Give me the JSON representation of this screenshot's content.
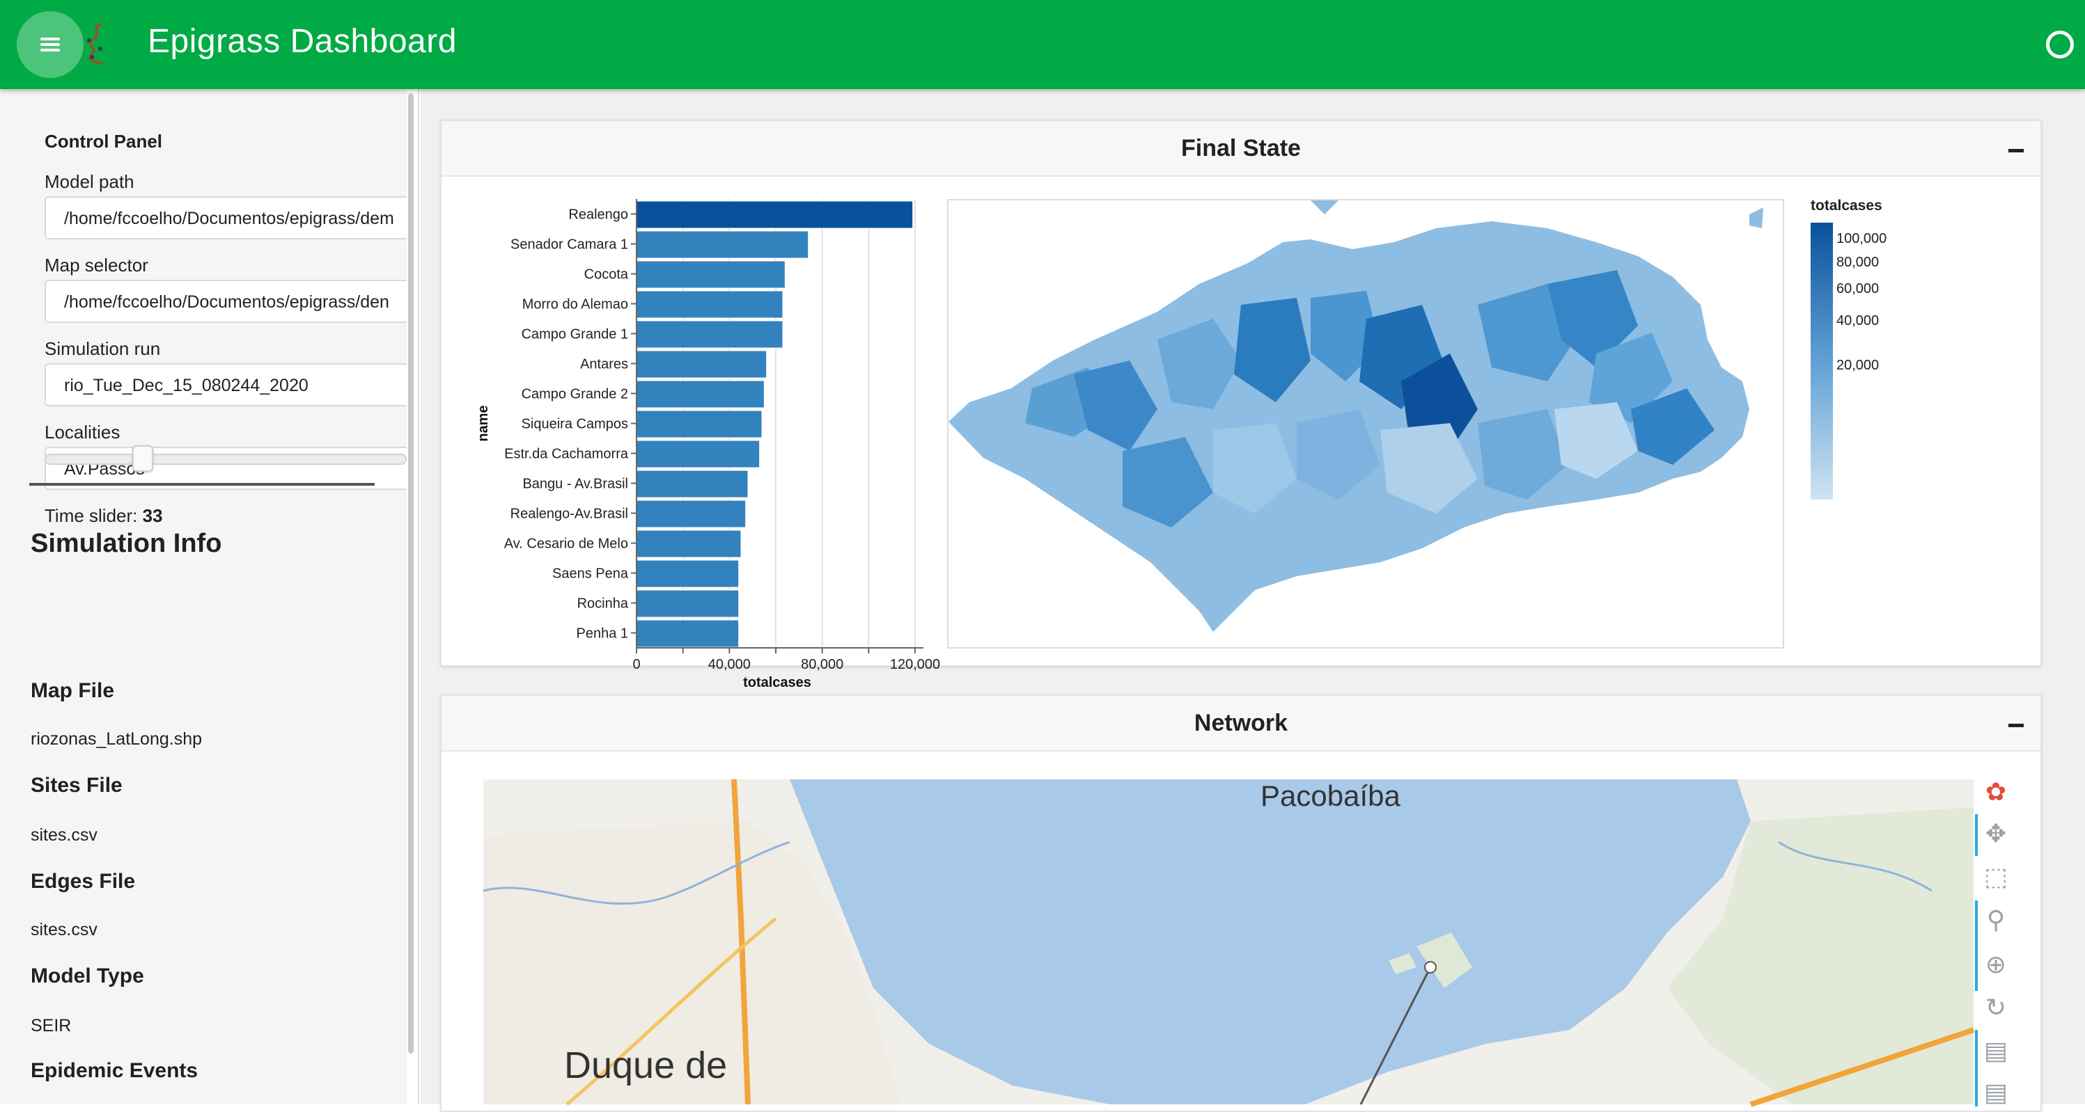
{
  "header": {
    "title": "Epigrass Dashboard",
    "menu_icon": "hamburger-menu-icon",
    "status_icon": "busy-indicator-ring-icon",
    "brand_color": "#00aa44"
  },
  "control_panel": {
    "title": "Control Panel",
    "model_path": {
      "label": "Model path",
      "value": "/home/fccoelho/Documentos/epigrass/dem"
    },
    "map_selector": {
      "label": "Map selector",
      "value": "/home/fccoelho/Documentos/epigrass/den"
    },
    "simulation_run": {
      "label": "Simulation run",
      "value": "rio_Tue_Dec_15_080244_2020"
    },
    "localities": {
      "label": "Localities",
      "value": "Av.Passos"
    },
    "time_slider": {
      "label": "Time slider: ",
      "value": "33",
      "fraction": 0.33
    }
  },
  "simulation_info": {
    "title": "Simulation Info",
    "map_file": {
      "label": "Map File",
      "value": "riozonas_LatLong.shp"
    },
    "sites_file": {
      "label": "Sites File",
      "value": "sites.csv"
    },
    "edges_file": {
      "label": "Edges File",
      "value": "sites.csv"
    },
    "model_type": {
      "label": "Model Type",
      "value": "SEIR"
    },
    "epidemic_events": {
      "label": "Epidemic Events"
    }
  },
  "final_state": {
    "title": "Final State",
    "legend": {
      "title": "totalcases",
      "labels": [
        "100,000",
        "80,000",
        "60,000",
        "40,000",
        "20,000"
      ]
    }
  },
  "network": {
    "title": "Network",
    "map_labels": {
      "north": "Pacobaíba",
      "west": "Duque de"
    },
    "tools": [
      "bokeh-logo-icon",
      "pan-icon",
      "box-zoom-icon",
      "wheel-zoom-icon",
      "zoom-in-icon",
      "reset-icon",
      "hover-icon",
      "hover-icon-2"
    ]
  },
  "chart_data": {
    "type": "bar",
    "orientation": "horizontal",
    "categories": [
      "Realengo",
      "Senador Camara 1",
      "Cocota",
      "Morro do Alemao",
      "Campo Grande 1",
      "Antares",
      "Campo Grande 2",
      "Siqueira Campos",
      "Estr.da Cachamorra",
      "Bangu - Av.Brasil",
      "Realengo-Av.Brasil",
      "Av. Cesario de Melo",
      "Saens Pena",
      "Rocinha",
      "Penha 1"
    ],
    "values": [
      119000,
      74000,
      64000,
      63000,
      63000,
      56000,
      55000,
      54000,
      53000,
      48000,
      47000,
      45000,
      44000,
      44000,
      44000
    ],
    "xlabel": "totalcases",
    "ylabel": "name",
    "xlim": [
      0,
      120000
    ],
    "xticks": [
      "0",
      "40,000",
      "80,000",
      "120,000"
    ],
    "bar_color": "#3182bd",
    "top_bar_color": "#08519c",
    "grid": true
  }
}
